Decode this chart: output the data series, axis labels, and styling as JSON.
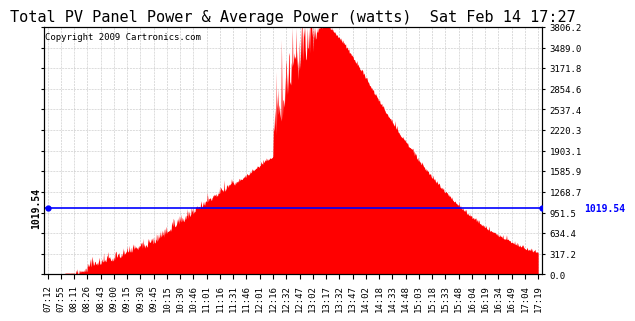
{
  "title": "Total PV Panel Power & Average Power (watts)  Sat Feb 14 17:27",
  "copyright": "Copyright 2009 Cartronics.com",
  "avg_line_value": 1019.54,
  "avg_label": "1019.54",
  "ymax": 3806.2,
  "ymin": 0.0,
  "yticks": [
    0.0,
    317.2,
    634.4,
    951.5,
    1268.7,
    1585.9,
    1903.1,
    2220.3,
    2537.4,
    2854.6,
    3171.8,
    3489.0,
    3806.2
  ],
  "xtick_labels": [
    "07:12",
    "07:55",
    "08:11",
    "08:26",
    "08:43",
    "09:00",
    "09:15",
    "09:30",
    "09:45",
    "10:15",
    "10:30",
    "10:46",
    "11:01",
    "11:16",
    "11:31",
    "11:46",
    "12:01",
    "12:16",
    "12:32",
    "12:47",
    "13:02",
    "13:17",
    "13:32",
    "13:47",
    "14:02",
    "14:18",
    "14:33",
    "14:48",
    "15:03",
    "15:18",
    "15:33",
    "15:48",
    "16:04",
    "16:19",
    "16:34",
    "16:49",
    "17:04",
    "17:19"
  ],
  "bar_color": "#FF0000",
  "line_color": "#0000FF",
  "background_color": "#FFFFFF",
  "grid_color": "#AAAAAA",
  "title_fontsize": 11,
  "copyright_fontsize": 6.5,
  "tick_fontsize": 6.5,
  "avg_fontsize": 7.0
}
